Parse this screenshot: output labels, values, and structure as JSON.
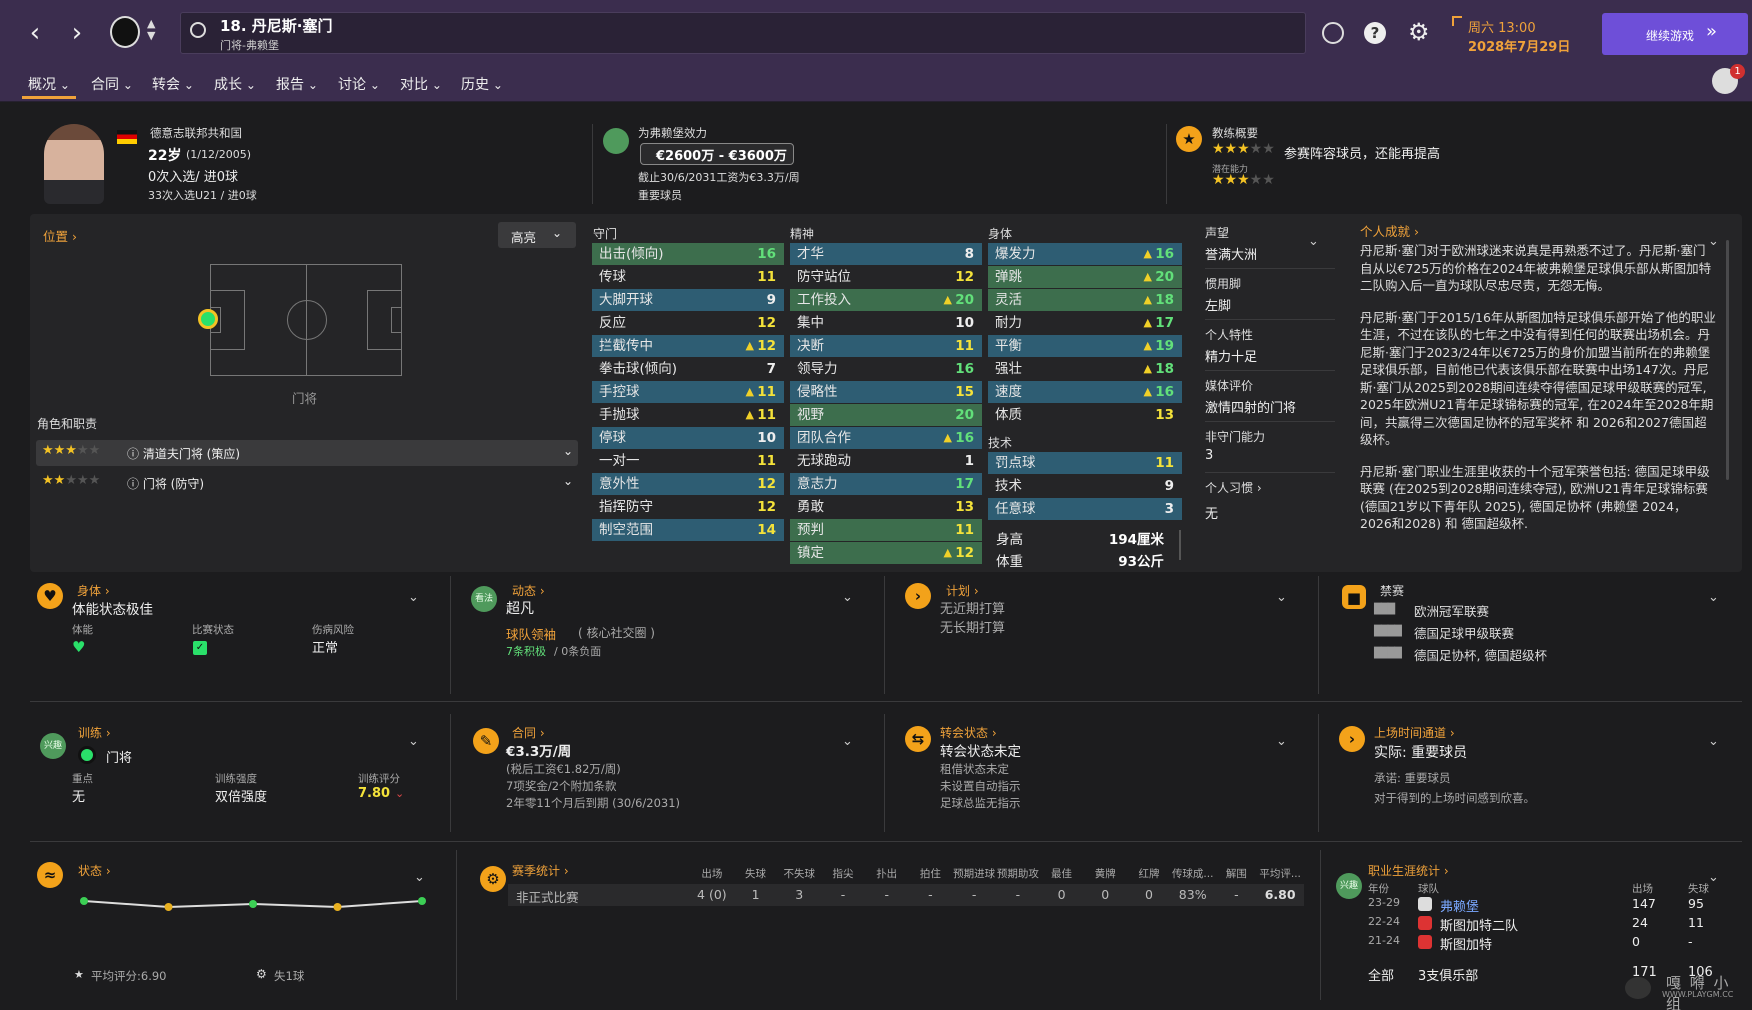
{
  "player": {
    "number_name": "18. 丹尼斯·塞门",
    "subtitle": "门将-弗赖堡",
    "nation": "德意志联邦共和国",
    "age": "22岁",
    "dob": "(1/12/2005)",
    "caps": "0次入选/ 进0球",
    "u21": "33次入选U21 / 进0球"
  },
  "header": {
    "date_line1": "周六 13:00",
    "date_line2": "2028年7月29日",
    "continue": "继续游戏"
  },
  "menu": [
    "概况",
    "合同",
    "转会",
    "成长",
    "报告",
    "讨论",
    "对比",
    "历史"
  ],
  "value": {
    "title": "为弗赖堡效力",
    "range": "€2600万 - €3600万",
    "wage": "截止30/6/2031工资为€3.3万/周",
    "status": "重要球员"
  },
  "coach": {
    "title": "教练概要",
    "potential": "潜在能力",
    "text": "参赛阵容球员，还能再提高"
  },
  "position": {
    "title": "位置",
    "highlight": "高亮",
    "label": "门将",
    "roles_title": "角色和职责",
    "role1": "清道夫门将 (策应)",
    "role2": "门将 (防守)"
  },
  "gk": {
    "title": "守门",
    "rows": [
      [
        "出击(倾向)",
        "16",
        "",
        1
      ],
      [
        "传球",
        "11",
        "",
        0
      ],
      [
        "大脚开球",
        "9",
        "",
        0
      ],
      [
        "反应",
        "12",
        "",
        0
      ],
      [
        "拦截传中",
        "12",
        "▲",
        0
      ],
      [
        "拳击球(倾向)",
        "7",
        "",
        0
      ],
      [
        "手控球",
        "11",
        "▲",
        0
      ],
      [
        "手抛球",
        "11",
        "▲",
        0
      ],
      [
        "停球",
        "10",
        "",
        0
      ],
      [
        "一对一",
        "11",
        "",
        0
      ],
      [
        "意外性",
        "12",
        "",
        0
      ],
      [
        "指挥防守",
        "12",
        "",
        0
      ],
      [
        "制空范围",
        "14",
        "",
        0
      ]
    ]
  },
  "mental": {
    "title": "精神",
    "rows": [
      [
        "才华",
        "8",
        "",
        0
      ],
      [
        "防守站位",
        "12",
        "",
        0
      ],
      [
        "工作投入",
        "20",
        "▲",
        1
      ],
      [
        "集中",
        "10",
        "",
        0
      ],
      [
        "决断",
        "11",
        "",
        0
      ],
      [
        "领导力",
        "16",
        "",
        0
      ],
      [
        "侵略性",
        "15",
        "",
        0
      ],
      [
        "视野",
        "20",
        "",
        1
      ],
      [
        "团队合作",
        "16",
        "▲",
        0
      ],
      [
        "无球跑动",
        "1",
        "",
        0
      ],
      [
        "意志力",
        "17",
        "",
        0
      ],
      [
        "勇敢",
        "13",
        "",
        0
      ],
      [
        "预判",
        "11",
        "",
        1
      ],
      [
        "镇定",
        "12",
        "▲",
        1
      ]
    ]
  },
  "physical": {
    "title": "身体",
    "rows": [
      [
        "爆发力",
        "16",
        "▲",
        0
      ],
      [
        "弹跳",
        "20",
        "▲",
        1
      ],
      [
        "灵活",
        "18",
        "▲",
        1
      ],
      [
        "耐力",
        "17",
        "▲",
        0
      ],
      [
        "平衡",
        "19",
        "▲",
        0
      ],
      [
        "强壮",
        "18",
        "▲",
        0
      ],
      [
        "速度",
        "16",
        "▲",
        0
      ],
      [
        "体质",
        "13",
        "",
        0
      ]
    ]
  },
  "technical": {
    "title": "技术",
    "rows": [
      [
        "罚点球",
        "11",
        "",
        0
      ],
      [
        "技术",
        "9",
        "",
        0
      ],
      [
        "任意球",
        "3",
        "",
        0
      ]
    ]
  },
  "height": {
    "label": "身高",
    "value": "194厘米"
  },
  "weight": {
    "label": "体重",
    "value": "93公斤"
  },
  "info": {
    "rep_t": "声望",
    "rep_v": "誉满大洲",
    "foot_t": "惯用脚",
    "foot_v": "左脚",
    "trait_t": "个人特性",
    "trait_v": "精力十足",
    "media_t": "媒体评价",
    "media_v": "激情四射的门将",
    "ngk_t": "非守门能力",
    "ngk_v": "3",
    "habit_t": "个人习惯",
    "habit_v": "无"
  },
  "bio": {
    "title": "个人成就",
    "p1": "丹尼斯·塞门对于欧洲球迷来说真是再熟悉不过了。丹尼斯·塞门自从以€725万的价格在2024年被弗赖堡足球俱乐部从斯图加特二队购入后一直为球队尽忠尽责，无怨无悔。",
    "p2": "丹尼斯·塞门于2015/16年从斯图加特足球俱乐部开始了他的职业生涯，不过在该队的七年之中没有得到任何的联赛出场机会。丹尼斯·塞门于2023/24年以€725万的身价加盟当前所在的弗赖堡足球俱乐部，目前他已代表该俱乐部在联赛中出场147次。丹尼斯·塞门从2025到2028期间连续夺得德国足球甲级联赛的冠军, 2025年欧洲U21青年足球锦标赛的冠军, 在2024年至2028年期间，共赢得三次德国足协杯的冠军奖杯 和 2026和2027德国超级杯。",
    "p3": "丹尼斯·塞门职业生涯里收获的十个冠军荣誉包括: 德国足球甲级联赛 (在2025到2028期间连续夺冠), 欧洲U21青年足球锦标赛 (德国21岁以下青年队 2025), 德国足协杯 (弗赖堡 2024，2026和2028) 和 德国超级杯."
  },
  "body": {
    "title": "身体",
    "status": "体能状态极佳",
    "fit": "体能",
    "match": "比赛状态",
    "inj": "伤病风险",
    "inj_v": "正常"
  },
  "dyn": {
    "title": "动态",
    "value": "超凡",
    "role": "球队领袖",
    "role2": "( 核心社交圈 )",
    "pos": "7条积极",
    "neg": "/ 0条负面",
    "icon": "看法"
  },
  "plan": {
    "title": "计划",
    "l1": "无近期打算",
    "l2": "无长期打算"
  },
  "ban": {
    "title": "禁赛",
    "l1": "欧洲冠军联赛",
    "l2": "德国足球甲级联赛",
    "l3": "德国足协杯, 德国超级杯"
  },
  "train": {
    "title": "训练",
    "pos": "门将",
    "focus_t": "重点",
    "focus_v": "无",
    "int_t": "训练强度",
    "int_v": "双倍强度",
    "rate_t": "训练评分",
    "rate_v": "7.80",
    "icon": "兴趣"
  },
  "contract": {
    "title": "合同",
    "wage": "€3.3万/周",
    "l1": "(税后工资€1.82万/周)",
    "l2": "7项奖金/2个附加条款",
    "l3": "2年零11个月后到期 (30/6/2031)"
  },
  "transfer": {
    "title": "转会状态",
    "v": "转会状态未定",
    "l1": "租借状态未定",
    "l2": "未设置自动指示",
    "l3": "足球总监无指示"
  },
  "playtime": {
    "title": "上场时间通道",
    "v": "实际: 重要球员",
    "l1": "承诺: 重要球员",
    "l2": "对于得到的上场时间感到欣喜。"
  },
  "form": {
    "title": "状态",
    "avg": "平均评分:6.90",
    "conc": "失1球",
    "values": [
      6.95,
      6.85,
      6.9,
      6.85,
      6.95
    ]
  },
  "season": {
    "title": "赛季统计",
    "heads": [
      "出场",
      "失球",
      "不失球",
      "指尖",
      "扑出",
      "拍住",
      "预期进球",
      "预期助攻",
      "最佳",
      "黄牌",
      "红牌",
      "传球成...",
      "解围",
      "平均评..."
    ],
    "comp": "非正式比赛",
    "vals": [
      "4 (0)",
      "1",
      "3",
      "-",
      "-",
      "-",
      "-",
      "-",
      "0",
      "0",
      "0",
      "83%",
      "-",
      "6.80"
    ]
  },
  "career": {
    "title": "职业生涯统计",
    "yr": "年份",
    "club": "球队",
    "apps": "出场",
    "conc": "失球",
    "rows": [
      [
        "23-29",
        "弗赖堡",
        "147",
        "95"
      ],
      [
        "22-24",
        "斯图加特二队",
        "24",
        "11"
      ],
      [
        "21-24",
        "斯图加特",
        "0",
        "-"
      ]
    ],
    "total_l": "全部",
    "total_c": "3支俱乐部",
    "total_a": "171",
    "total_g": "106",
    "icon": "兴趣"
  },
  "notif": "1",
  "watermark": "WWW.PLAYGM.CC",
  "watermark_logo": "嘎 嘚 小 组"
}
